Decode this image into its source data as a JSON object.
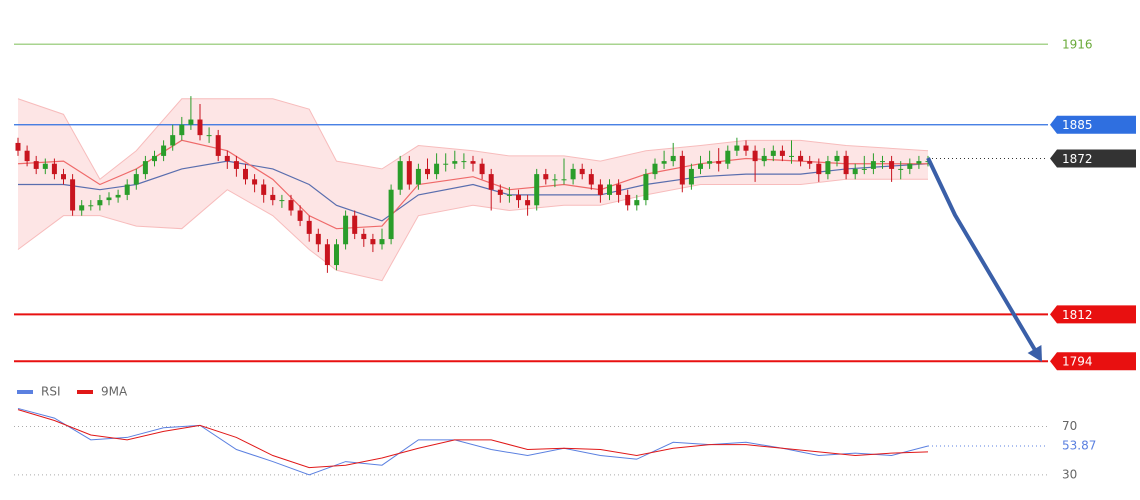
{
  "chart_data": [
    {
      "type": "candlestick",
      "ylim": [
        1786,
        1933
      ],
      "up_color": "#2a9d2a",
      "down_color": "#c8141e",
      "open": [
        1878,
        1875,
        1871,
        1868,
        1870,
        1866,
        1864,
        1852,
        1854,
        1854,
        1856,
        1857,
        1858,
        1862,
        1866,
        1871,
        1873,
        1877,
        1881,
        1885,
        1887,
        1881,
        1881,
        1873,
        1871,
        1868,
        1864,
        1862,
        1858,
        1856,
        1856,
        1852,
        1848,
        1843,
        1839,
        1831,
        1839,
        1850,
        1843,
        1841,
        1839,
        1841,
        1860,
        1871,
        1862,
        1868,
        1866,
        1870,
        1870,
        1871,
        1871,
        1870,
        1866,
        1860,
        1858,
        1858,
        1856,
        1854,
        1866,
        1864,
        1864,
        1864,
        1868,
        1866,
        1862,
        1858,
        1862,
        1858,
        1854,
        1856,
        1866,
        1870,
        1871,
        1873,
        1862,
        1868,
        1870,
        1871,
        1870,
        1875,
        1877,
        1875,
        1871,
        1873,
        1875,
        1873,
        1873,
        1871,
        1870,
        1866,
        1871,
        1873,
        1866,
        1868,
        1868,
        1871,
        1871,
        1868,
        1868,
        1870,
        1871
      ],
      "high": [
        1880,
        1877,
        1873,
        1872,
        1872,
        1868,
        1866,
        1856,
        1856,
        1858,
        1859,
        1860,
        1864,
        1868,
        1873,
        1875,
        1879,
        1885,
        1888,
        1896,
        1893,
        1884,
        1883,
        1875,
        1873,
        1870,
        1866,
        1864,
        1861,
        1858,
        1858,
        1854,
        1850,
        1845,
        1841,
        1841,
        1852,
        1852,
        1845,
        1843,
        1845,
        1862,
        1873,
        1873,
        1870,
        1872,
        1874,
        1874,
        1875,
        1874,
        1873,
        1872,
        1868,
        1862,
        1861,
        1860,
        1858,
        1868,
        1868,
        1866,
        1872,
        1870,
        1870,
        1868,
        1864,
        1864,
        1864,
        1860,
        1858,
        1868,
        1872,
        1875,
        1878,
        1875,
        1870,
        1873,
        1875,
        1876,
        1877,
        1880,
        1879,
        1877,
        1876,
        1877,
        1877,
        1879,
        1875,
        1873,
        1872,
        1873,
        1875,
        1875,
        1870,
        1873,
        1874,
        1873,
        1873,
        1871,
        1872,
        1873,
        1873
      ],
      "low": [
        1873,
        1869,
        1866,
        1866,
        1864,
        1862,
        1850,
        1850,
        1852,
        1852,
        1854,
        1855,
        1856,
        1860,
        1864,
        1869,
        1871,
        1875,
        1879,
        1883,
        1879,
        1878,
        1871,
        1868,
        1865,
        1862,
        1859,
        1855,
        1854,
        1853,
        1850,
        1846,
        1840,
        1836,
        1828,
        1829,
        1837,
        1841,
        1838,
        1836,
        1837,
        1839,
        1858,
        1860,
        1860,
        1864,
        1864,
        1867,
        1868,
        1868,
        1867,
        1864,
        1852,
        1855,
        1855,
        1853,
        1850,
        1852,
        1862,
        1861,
        1862,
        1862,
        1864,
        1860,
        1855,
        1856,
        1855,
        1852,
        1852,
        1854,
        1864,
        1868,
        1869,
        1859,
        1860,
        1866,
        1868,
        1867,
        1868,
        1873,
        1873,
        1863,
        1869,
        1871,
        1871,
        1870,
        1869,
        1868,
        1863,
        1864,
        1869,
        1864,
        1864,
        1866,
        1866,
        1868,
        1863,
        1864,
        1866,
        1868,
        1869
      ],
      "close": [
        1875,
        1871,
        1868,
        1870,
        1866,
        1864,
        1852,
        1854,
        1854,
        1856,
        1857,
        1858,
        1862,
        1866,
        1871,
        1873,
        1877,
        1881,
        1885,
        1887,
        1881,
        1881,
        1873,
        1871,
        1868,
        1864,
        1862,
        1858,
        1856,
        1856,
        1852,
        1848,
        1843,
        1839,
        1831,
        1839,
        1850,
        1843,
        1841,
        1839,
        1841,
        1860,
        1871,
        1862,
        1868,
        1866,
        1870,
        1870,
        1871,
        1871,
        1870,
        1866,
        1860,
        1858,
        1858,
        1856,
        1854,
        1866,
        1864,
        1864,
        1864,
        1868,
        1866,
        1862,
        1858,
        1862,
        1858,
        1854,
        1856,
        1866,
        1870,
        1871,
        1873,
        1862,
        1868,
        1870,
        1871,
        1870,
        1875,
        1877,
        1875,
        1871,
        1873,
        1875,
        1873,
        1873,
        1871,
        1870,
        1866,
        1871,
        1873,
        1866,
        1868,
        1868,
        1871,
        1871,
        1868,
        1868,
        1870,
        1871,
        1871
      ],
      "bollinger": {
        "x": [
          0,
          5,
          9,
          13,
          18,
          23,
          28,
          32,
          35,
          40,
          44,
          50,
          54,
          60,
          64,
          69,
          75,
          80,
          86,
          91,
          100
        ],
        "upper": [
          1895,
          1889,
          1864,
          1875,
          1895,
          1895,
          1895,
          1891,
          1871,
          1868,
          1877,
          1875,
          1873,
          1873,
          1871,
          1875,
          1877,
          1879,
          1879,
          1877,
          1875
        ],
        "lower": [
          1837,
          1850,
          1850,
          1846,
          1845,
          1860,
          1850,
          1837,
          1829,
          1825,
          1850,
          1854,
          1852,
          1854,
          1854,
          1858,
          1862,
          1862,
          1862,
          1864,
          1864
        ],
        "middle": [
          1862,
          1862,
          1860,
          1862,
          1868,
          1871,
          1868,
          1862,
          1854,
          1848,
          1858,
          1862,
          1858,
          1858,
          1858,
          1862,
          1865,
          1866,
          1866,
          1868,
          1870
        ],
        "fill": "#fcdcdc",
        "edge_color": "#f7bcbc",
        "middle_color": "#5a6eae"
      },
      "ma": {
        "x": [
          0,
          5,
          9,
          13,
          18,
          23,
          28,
          32,
          35,
          40,
          44,
          50,
          54,
          60,
          64,
          69,
          75,
          80,
          86,
          91,
          100
        ],
        "values": [
          1870,
          1871,
          1862,
          1868,
          1879,
          1875,
          1864,
          1850,
          1845,
          1846,
          1862,
          1865,
          1860,
          1862,
          1860,
          1866,
          1870,
          1872,
          1871,
          1870,
          1870
        ],
        "color": "#ef6a6a"
      },
      "levels": [
        {
          "value": 1916,
          "color": "#8cc56a",
          "text_color": "#6aaa3a",
          "boxed": false,
          "style": "solid"
        },
        {
          "value": 1885,
          "color": "#2f6fe0",
          "text_color": "#ffffff",
          "boxed": true,
          "style": "solid"
        },
        {
          "value": 1872,
          "color": "#333333",
          "text_color": "#ffffff",
          "boxed": true,
          "style": "dotted"
        },
        {
          "value": 1812,
          "color": "#e81010",
          "text_color": "#ffffff",
          "boxed": true,
          "style": "solid"
        },
        {
          "value": 1794,
          "color": "#e81010",
          "text_color": "#ffffff",
          "boxed": true,
          "style": "solid"
        }
      ]
    },
    {
      "type": "line",
      "ylim": [
        10,
        92
      ],
      "yticks": [
        70,
        30
      ],
      "legend": "top-left",
      "x": [
        0,
        4,
        8,
        12,
        16,
        20,
        24,
        28,
        32,
        36,
        40,
        44,
        48,
        52,
        56,
        60,
        64,
        68,
        72,
        76,
        80,
        84,
        88,
        92,
        96,
        100
      ],
      "series": [
        {
          "name": "RSI",
          "color": "#5b80e0",
          "values": [
            85,
            77,
            59,
            61,
            69,
            71,
            51,
            41,
            30,
            41,
            38,
            59,
            59,
            51,
            46,
            52,
            46,
            43,
            57,
            55,
            57,
            52,
            46,
            48,
            46,
            53.87
          ]
        },
        {
          "name": "9MA",
          "color": "#e01818",
          "values": [
            84,
            75,
            63,
            59,
            66,
            71,
            61,
            46,
            36,
            38,
            44,
            52,
            59,
            59,
            51,
            52,
            51,
            46,
            52,
            55,
            55,
            52,
            49,
            46,
            48,
            49
          ]
        }
      ]
    }
  ]
}
